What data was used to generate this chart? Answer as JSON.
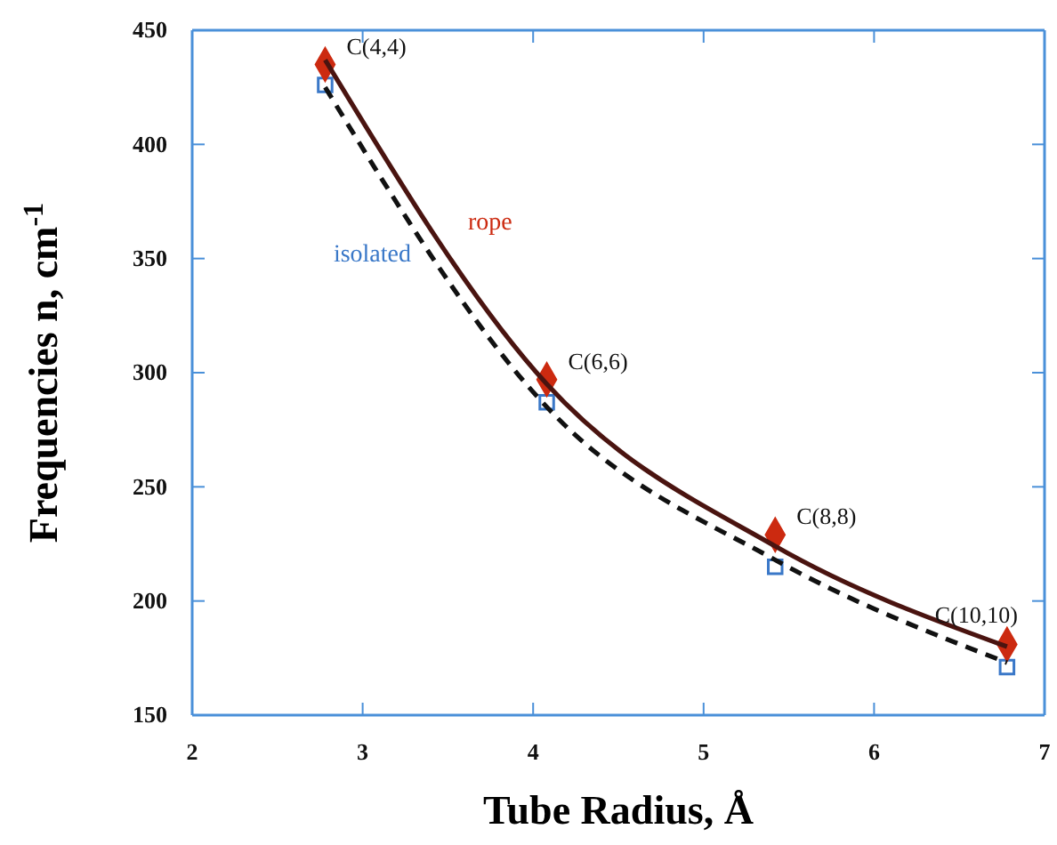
{
  "chart_data": {
    "type": "scatter",
    "xlabel": "Tube Radius, Å",
    "ylabel": "Frequencies n, cm$^{-1}$",
    "xlim": [
      2,
      7
    ],
    "xticks": [
      2,
      3,
      4,
      5,
      6,
      7
    ],
    "ylim": [
      150,
      450
    ],
    "yticks": [
      150,
      200,
      250,
      300,
      350,
      400,
      450
    ],
    "grid": false,
    "series": [
      {
        "type": "line",
        "color": "#4a1410",
        "line_style": "solid",
        "marker": "none",
        "x": [
          2.78,
          4.08,
          5.42,
          6.78
        ],
        "values": [
          437,
          295,
          224,
          180
        ]
      },
      {
        "type": "line",
        "color": "#111111",
        "line_style": "dashed",
        "marker": "none",
        "x": [
          2.78,
          4.08,
          5.42,
          6.78
        ],
        "values": [
          425,
          285,
          218,
          173
        ]
      },
      {
        "name": "rope",
        "color": "#cc2a10",
        "marker": "diamond",
        "x": [
          2.78,
          4.08,
          5.42,
          6.78
        ],
        "values": [
          435,
          297,
          229,
          181
        ]
      },
      {
        "name": "isolated",
        "color": "#3a78c8",
        "marker": "square",
        "x": [
          2.78,
          4.08,
          5.42,
          6.78
        ],
        "values": [
          426,
          287,
          215,
          171
        ]
      }
    ],
    "annotations": [
      {
        "text": "C(4,4)",
        "x": 2.78,
        "y": 435
      },
      {
        "text": "C(6,6)",
        "x": 4.08,
        "y": 297
      },
      {
        "text": "C(8,8)",
        "x": 5.42,
        "y": 229
      },
      {
        "text": "C(10,10)",
        "x": 6.78,
        "y": 181
      }
    ]
  }
}
